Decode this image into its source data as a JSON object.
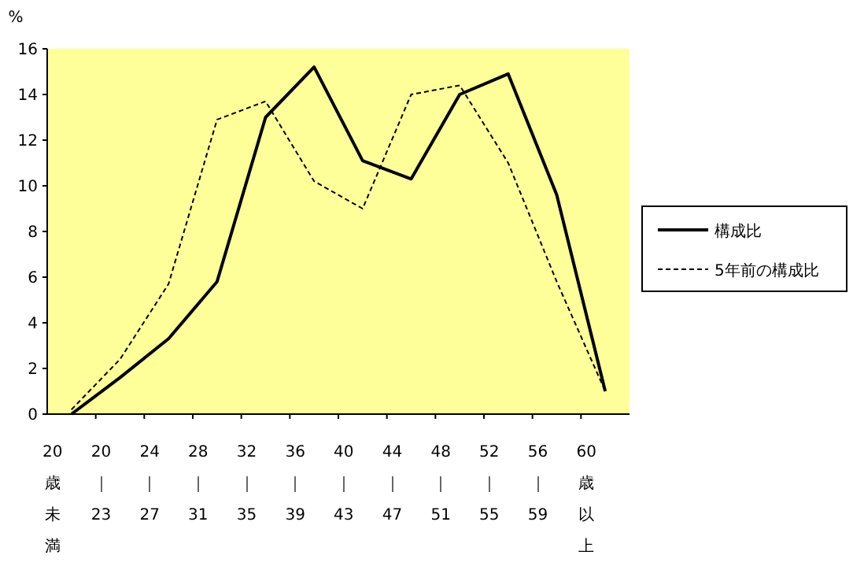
{
  "chart_data": {
    "type": "line",
    "ylabel": "%",
    "categories": [
      "20歳未満",
      "20｜23",
      "24｜27",
      "28｜31",
      "32｜35",
      "36｜39",
      "40｜43",
      "44｜47",
      "48｜51",
      "52｜55",
      "56｜59",
      "60歳以上"
    ],
    "series": [
      {
        "name": "構成比",
        "color": "#000000",
        "line_style": "solid",
        "values": [
          0,
          1.6,
          3.3,
          5.8,
          13,
          15.2,
          11.1,
          10.3,
          14,
          14.9,
          9.6,
          1
        ]
      },
      {
        "name": "5年前の構成比",
        "color": "#000000",
        "line_style": "dashed",
        "values": [
          0.2,
          2.4,
          5.7,
          12.9,
          13.7,
          10.2,
          9,
          14,
          14.4,
          11,
          5.8,
          1
        ]
      }
    ],
    "ylim": [
      0,
      16
    ],
    "yticks": [
      0,
      2,
      4,
      6,
      8,
      10,
      12,
      14,
      16
    ],
    "grid": false,
    "legend": "right",
    "marker": "none"
  }
}
